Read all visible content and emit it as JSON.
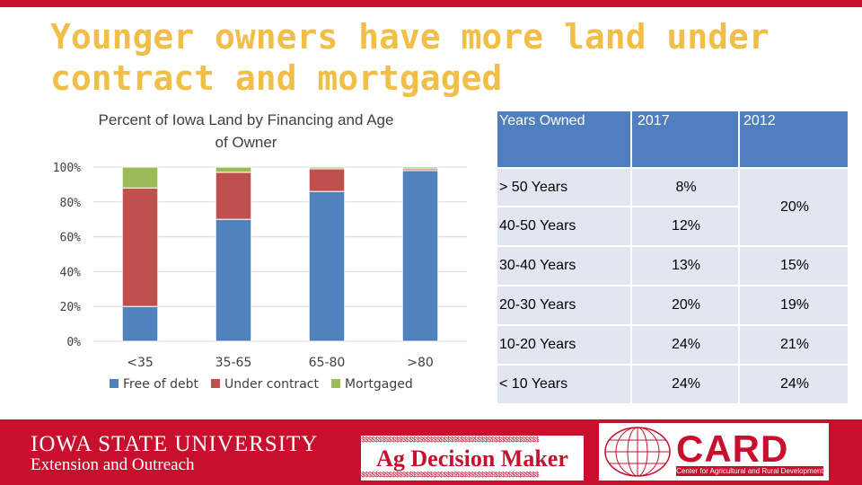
{
  "slide": {
    "title_line1": "Younger owners have more land under",
    "title_line2": "contract and mortgaged"
  },
  "chart_data": {
    "type": "bar",
    "stacked": true,
    "title": "Percent of Iowa Land by Financing and Age of Owner",
    "title_line1": "Percent of Iowa Land by Financing and Age",
    "title_line2": "of Owner",
    "categories": [
      "<35",
      "35-65",
      "65-80",
      ">80"
    ],
    "series": [
      {
        "name": "Free of debt",
        "values": [
          20,
          70,
          86,
          98
        ],
        "color": "#4f81bd"
      },
      {
        "name": "Under contract",
        "values": [
          68,
          27,
          13,
          1
        ],
        "color": "#c0504d"
      },
      {
        "name": "Mortgaged",
        "values": [
          12,
          3,
          1,
          1
        ],
        "color": "#9bbb59"
      }
    ],
    "ylim": [
      0,
      100
    ],
    "yticks": [
      "0%",
      "20%",
      "40%",
      "60%",
      "80%",
      "100%"
    ],
    "grid": true,
    "legend": "bottom"
  },
  "table": {
    "headers": [
      "Years Owned",
      "2017",
      "2012"
    ],
    "rows": [
      {
        "label": "> 50 Years",
        "v2017": "8%",
        "v2012": "20%"
      },
      {
        "label": "40-50 Years",
        "v2017": "12%",
        "v2012": ""
      },
      {
        "label": "30-40 Years",
        "v2017": "13%",
        "v2012": "15%"
      },
      {
        "label": "20-30 Years",
        "v2017": "20%",
        "v2012": "19%"
      },
      {
        "label": "10-20 Years",
        "v2017": "24%",
        "v2012": "21%"
      },
      {
        "label": "< 10 Years",
        "v2017": "24%",
        "v2012": "24%"
      }
    ]
  },
  "footer": {
    "isu_name": "IOWA STATE UNIVERSITY",
    "isu_sub": "Extension and Outreach",
    "adm_dollars": "$$$$$$$$$$$$$$$$$$$$$$$$$$$$$$$$$$$$$$$$$$$$$$$$$$$$",
    "adm_text": "Ag Decision Maker",
    "card_word": "CARD",
    "card_line": "Center for Agricultural and Rural Development"
  },
  "colors": {
    "title": "#f1be48",
    "brand_red": "#c8102e",
    "header_blue": "#4f7fbf",
    "cell": "#e1e6f1"
  }
}
